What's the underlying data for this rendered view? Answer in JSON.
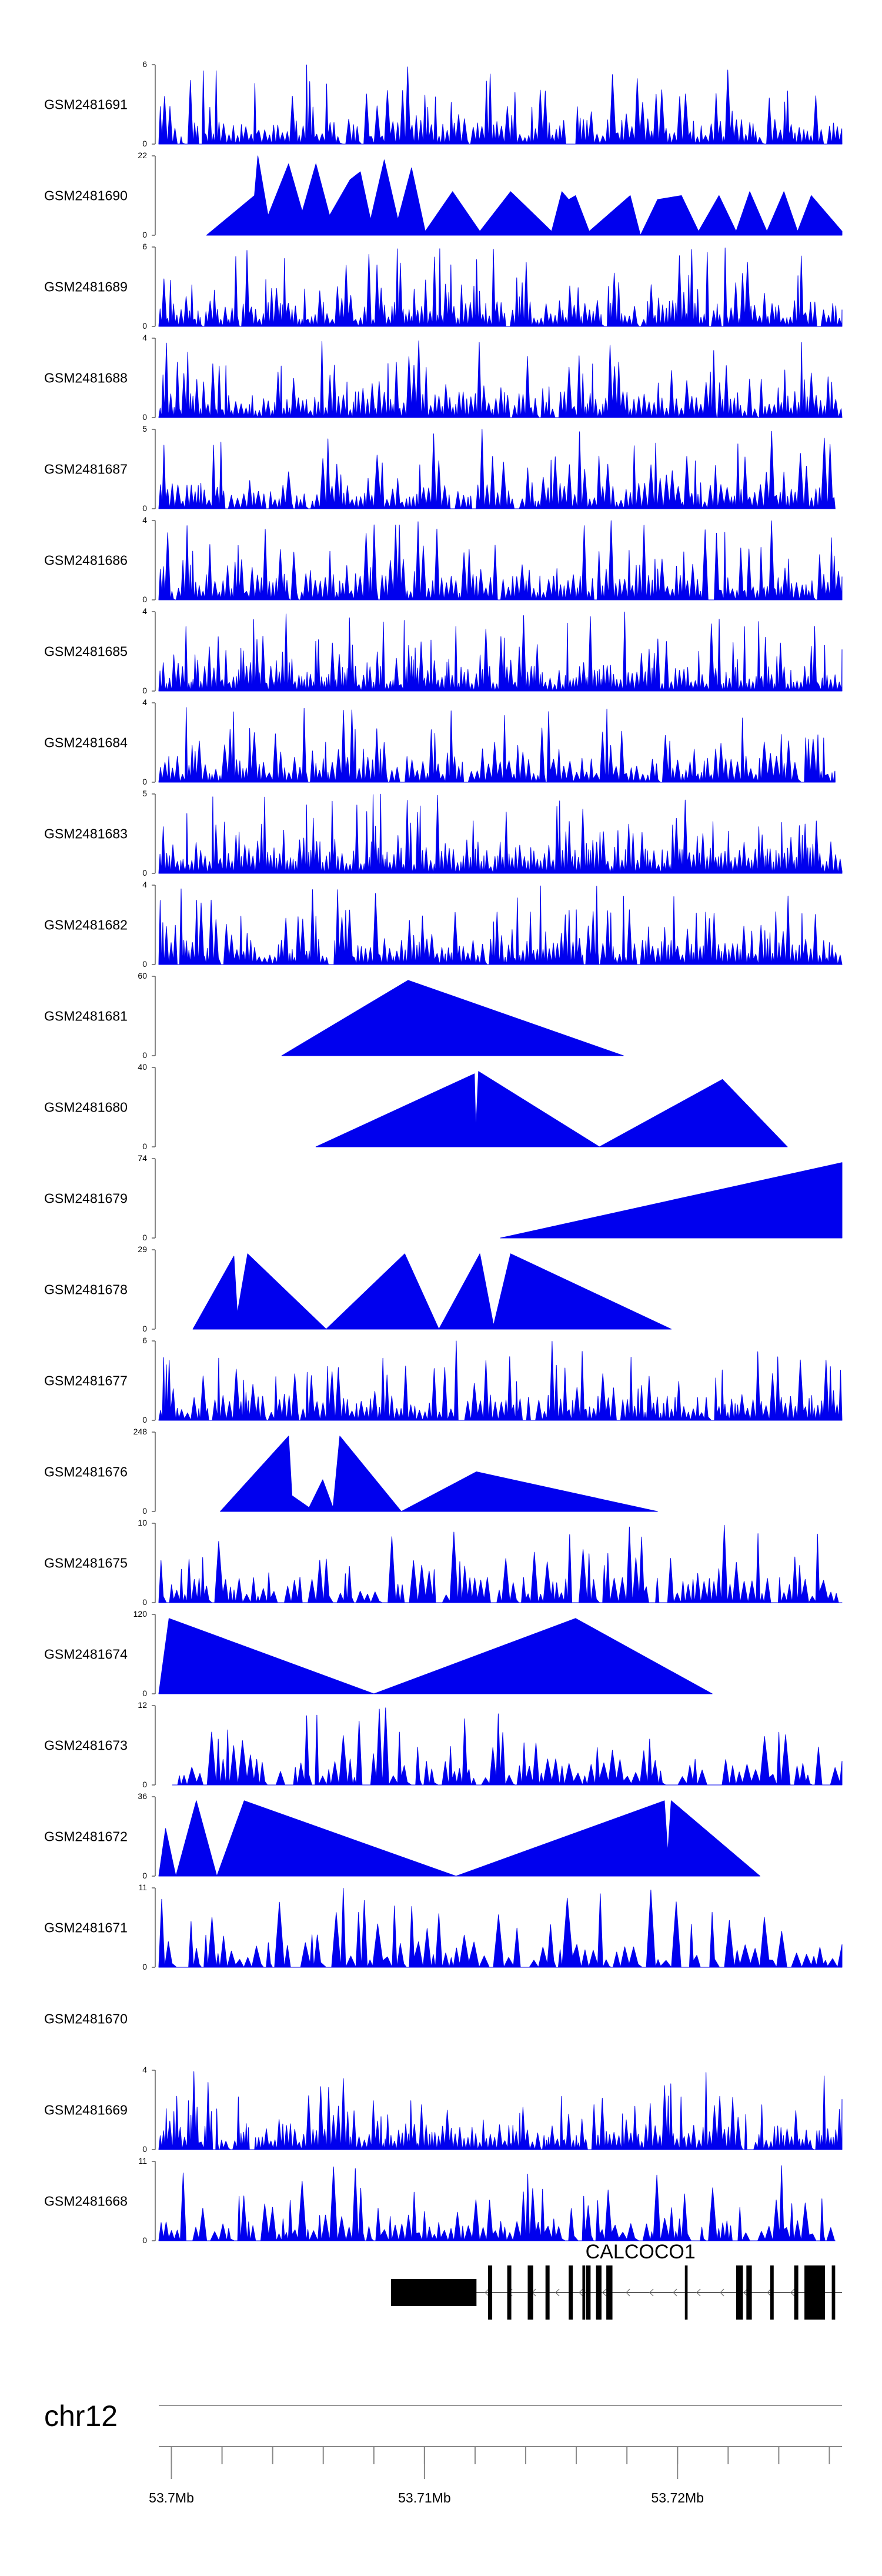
{
  "chart_data": {
    "type": "area",
    "title": "",
    "xlabel": "",
    "ylabel": "",
    "x_range_mb": [
      53.6995,
      53.7265
    ],
    "chromosome": "chr12",
    "axis_ticks": [
      {
        "value": 53.7,
        "label": "53.7Mb"
      },
      {
        "value": 53.71,
        "label": "53.71Mb"
      },
      {
        "value": 53.72,
        "label": "53.72Mb"
      }
    ],
    "minor_ticks": [
      53.7,
      53.702,
      53.704,
      53.706,
      53.708,
      53.71,
      53.712,
      53.714,
      53.716,
      53.718,
      53.72,
      53.722,
      53.724,
      53.726
    ],
    "tracks": [
      {
        "name": "GSM2481691",
        "ymax": 6,
        "ymax_label": "6",
        "ymin_label": "0",
        "kind": "dense",
        "start": 0.0,
        "end": 1.0,
        "seed": 11,
        "density": 0.9
      },
      {
        "name": "GSM2481690",
        "ymax": 22,
        "ymax_label": "22",
        "ymin_label": "0",
        "kind": "sparse",
        "start": 0.07,
        "end": 1.0,
        "peaks": [
          [
            0.07,
            0
          ],
          [
            0.14,
            0.5
          ],
          [
            0.145,
            1.0
          ],
          [
            0.16,
            0.25
          ],
          [
            0.19,
            0.9
          ],
          [
            0.21,
            0.3
          ],
          [
            0.23,
            0.9
          ],
          [
            0.25,
            0.25
          ],
          [
            0.28,
            0.7
          ],
          [
            0.295,
            0.8
          ],
          [
            0.31,
            0.2
          ],
          [
            0.33,
            0.95
          ],
          [
            0.35,
            0.2
          ],
          [
            0.37,
            0.85
          ],
          [
            0.39,
            0.05
          ],
          [
            0.43,
            0.55
          ],
          [
            0.47,
            0.05
          ],
          [
            0.515,
            0.55
          ],
          [
            0.575,
            0.05
          ],
          [
            0.59,
            0.55
          ],
          [
            0.6,
            0.45
          ],
          [
            0.61,
            0.5
          ],
          [
            0.63,
            0.05
          ],
          [
            0.69,
            0.5
          ],
          [
            0.705,
            0.0
          ],
          [
            0.73,
            0.45
          ],
          [
            0.765,
            0.5
          ],
          [
            0.79,
            0.05
          ],
          [
            0.82,
            0.5
          ],
          [
            0.845,
            0.05
          ],
          [
            0.865,
            0.55
          ],
          [
            0.89,
            0.05
          ],
          [
            0.915,
            0.55
          ],
          [
            0.935,
            0.05
          ],
          [
            0.955,
            0.5
          ],
          [
            1.0,
            0.05
          ]
        ]
      },
      {
        "name": "GSM2481689",
        "ymax": 6,
        "ymax_label": "6",
        "ymin_label": "0",
        "kind": "dense",
        "start": 0.0,
        "end": 1.0,
        "seed": 23,
        "density": 0.95
      },
      {
        "name": "GSM2481688",
        "ymax": 4,
        "ymax_label": "4",
        "ymin_label": "0",
        "kind": "dense",
        "start": 0.0,
        "end": 1.0,
        "seed": 37,
        "density": 0.95
      },
      {
        "name": "GSM2481687",
        "ymax": 5,
        "ymax_label": "5",
        "ymin_label": "0",
        "kind": "dense",
        "start": 0.0,
        "end": 0.99,
        "seed": 41,
        "density": 0.85
      },
      {
        "name": "GSM2481686",
        "ymax": 4,
        "ymax_label": "4",
        "ymin_label": "0",
        "kind": "dense",
        "start": 0.0,
        "end": 1.0,
        "seed": 53,
        "density": 0.9
      },
      {
        "name": "GSM2481685",
        "ymax": 4,
        "ymax_label": "4",
        "ymin_label": "0",
        "kind": "dense",
        "start": 0.0,
        "end": 1.0,
        "seed": 67,
        "density": 1.0
      },
      {
        "name": "GSM2481684",
        "ymax": 4,
        "ymax_label": "4",
        "ymin_label": "0",
        "kind": "dense",
        "start": 0.0,
        "end": 0.99,
        "seed": 71,
        "density": 0.85
      },
      {
        "name": "GSM2481683",
        "ymax": 5,
        "ymax_label": "5",
        "ymin_label": "0",
        "kind": "dense",
        "start": 0.0,
        "end": 1.0,
        "seed": 83,
        "density": 1.0
      },
      {
        "name": "GSM2481682",
        "ymax": 4,
        "ymax_label": "4",
        "ymin_label": "0",
        "kind": "dense",
        "start": 0.0,
        "end": 1.0,
        "seed": 97,
        "density": 0.95
      },
      {
        "name": "GSM2481681",
        "ymax": 60,
        "ymax_label": "60",
        "ymin_label": "0",
        "kind": "sparse",
        "start": 0.18,
        "end": 0.68,
        "peaks": [
          [
            0.18,
            0
          ],
          [
            0.365,
            0.95
          ],
          [
            0.68,
            0
          ]
        ]
      },
      {
        "name": "GSM2481680",
        "ymax": 40,
        "ymax_label": "40",
        "ymin_label": "0",
        "kind": "sparse",
        "start": 0.23,
        "end": 0.92,
        "peaks": [
          [
            0.23,
            0
          ],
          [
            0.462,
            0.92
          ],
          [
            0.464,
            0.2
          ],
          [
            0.468,
            0.95
          ],
          [
            0.645,
            0
          ],
          [
            0.825,
            0.85
          ],
          [
            0.92,
            0
          ]
        ]
      },
      {
        "name": "GSM2481679",
        "ymax": 74,
        "ymax_label": "74",
        "ymin_label": "0",
        "kind": "sparse",
        "start": 0.5,
        "end": 1.0,
        "peaks": [
          [
            0.5,
            0
          ],
          [
            1.0,
            0.95
          ]
        ]
      },
      {
        "name": "GSM2481678",
        "ymax": 29,
        "ymax_label": "29",
        "ymin_label": "0",
        "kind": "sparse",
        "start": 0.05,
        "end": 0.75,
        "peaks": [
          [
            0.05,
            0
          ],
          [
            0.11,
            0.92
          ],
          [
            0.115,
            0.2
          ],
          [
            0.13,
            0.95
          ],
          [
            0.245,
            0
          ],
          [
            0.36,
            0.95
          ],
          [
            0.41,
            0
          ],
          [
            0.47,
            0.95
          ],
          [
            0.49,
            0.05
          ],
          [
            0.515,
            0.95
          ],
          [
            0.75,
            0
          ]
        ]
      },
      {
        "name": "GSM2481677",
        "ymax": 6,
        "ymax_label": "6",
        "ymin_label": "0",
        "kind": "dense",
        "start": 0.0,
        "end": 1.0,
        "seed": 113,
        "density": 0.85
      },
      {
        "name": "GSM2481676",
        "ymax": 248,
        "ymax_label": "248",
        "ymin_label": "0",
        "kind": "sparse",
        "start": 0.09,
        "end": 0.73,
        "peaks": [
          [
            0.09,
            0
          ],
          [
            0.19,
            0.95
          ],
          [
            0.195,
            0.2
          ],
          [
            0.22,
            0.05
          ],
          [
            0.24,
            0.4
          ],
          [
            0.255,
            0.05
          ],
          [
            0.265,
            0.95
          ],
          [
            0.355,
            0
          ],
          [
            0.465,
            0.5
          ],
          [
            0.73,
            0
          ]
        ]
      },
      {
        "name": "GSM2481675",
        "ymax": 10,
        "ymax_label": "10",
        "ymin_label": "0",
        "kind": "dense",
        "start": 0.0,
        "end": 1.0,
        "seed": 131,
        "density": 0.7
      },
      {
        "name": "GSM2481674",
        "ymax": 120,
        "ymax_label": "120",
        "ymin_label": "0",
        "kind": "sparse",
        "start": 0.0,
        "end": 0.81,
        "peaks": [
          [
            0.0,
            0
          ],
          [
            0.015,
            0.95
          ],
          [
            0.315,
            0
          ],
          [
            0.61,
            0.95
          ],
          [
            0.81,
            0
          ]
        ]
      },
      {
        "name": "GSM2481673",
        "ymax": 12,
        "ymax_label": "12",
        "ymin_label": "0",
        "kind": "dense",
        "start": 0.02,
        "end": 1.0,
        "seed": 149,
        "density": 0.6
      },
      {
        "name": "GSM2481672",
        "ymax": 36,
        "ymax_label": "36",
        "ymin_label": "0",
        "kind": "sparse",
        "start": 0.0,
        "end": 0.88,
        "peaks": [
          [
            0.0,
            0
          ],
          [
            0.01,
            0.6
          ],
          [
            0.025,
            0
          ],
          [
            0.055,
            0.95
          ],
          [
            0.085,
            0
          ],
          [
            0.125,
            0.95
          ],
          [
            0.435,
            0
          ],
          [
            0.74,
            0.95
          ],
          [
            0.745,
            0.3
          ],
          [
            0.75,
            0.95
          ],
          [
            0.88,
            0
          ]
        ]
      },
      {
        "name": "GSM2481671",
        "ymax": 11,
        "ymax_label": "11",
        "ymin_label": "0",
        "kind": "dense",
        "start": 0.0,
        "end": 1.0,
        "seed": 163,
        "density": 0.5
      },
      {
        "name": "GSM2481670",
        "ymax": 0,
        "ymax_label": "",
        "ymin_label": "",
        "kind": "empty",
        "start": 0.0,
        "end": 0.0
      },
      {
        "name": "GSM2481669",
        "ymax": 4,
        "ymax_label": "4",
        "ymin_label": "0",
        "kind": "dense",
        "start": 0.0,
        "end": 1.0,
        "seed": 179,
        "density": 0.95
      },
      {
        "name": "GSM2481668",
        "ymax": 11,
        "ymax_label": "11",
        "ymin_label": "0",
        "kind": "dense",
        "start": 0.0,
        "end": 0.99,
        "seed": 191,
        "density": 0.7
      }
    ],
    "gene": {
      "name": "CALCOCO1",
      "strand": "-",
      "start_frac": 0.34,
      "end_frac": 1.0,
      "exons": [
        [
          0.34,
          0.465
        ],
        [
          0.482,
          0.488
        ],
        [
          0.51,
          0.516
        ],
        [
          0.54,
          0.548
        ],
        [
          0.566,
          0.572
        ],
        [
          0.6,
          0.606
        ],
        [
          0.62,
          0.624
        ],
        [
          0.625,
          0.632
        ],
        [
          0.64,
          0.648
        ],
        [
          0.655,
          0.664
        ],
        [
          0.77,
          0.774
        ],
        [
          0.845,
          0.855
        ],
        [
          0.86,
          0.868
        ],
        [
          0.895,
          0.9
        ],
        [
          0.93,
          0.936
        ],
        [
          0.945,
          0.975
        ],
        [
          0.985,
          0.99
        ]
      ]
    }
  }
}
